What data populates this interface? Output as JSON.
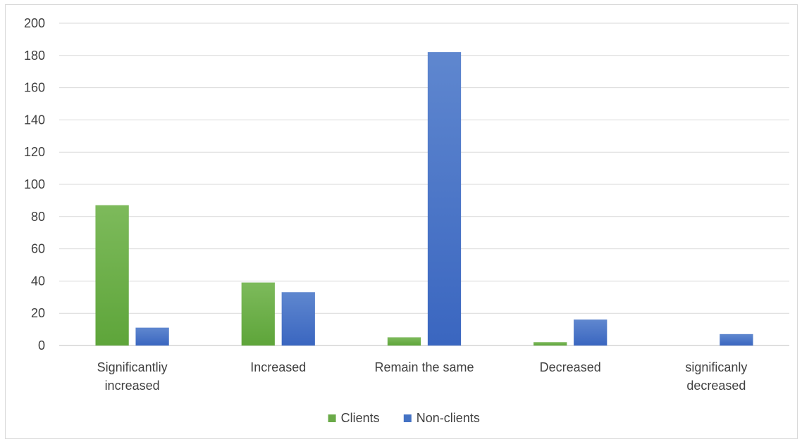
{
  "chart_data": {
    "type": "bar",
    "title": "",
    "xlabel": "",
    "ylabel": "",
    "ylim": [
      0,
      200
    ],
    "yticks": [
      0,
      20,
      40,
      60,
      80,
      100,
      120,
      140,
      160,
      180,
      200
    ],
    "grid": true,
    "legend_position": "bottom",
    "categories": [
      [
        "Significantliy",
        "increased"
      ],
      [
        "Increased"
      ],
      [
        "Remain the same"
      ],
      [
        "Decreased"
      ],
      [
        "significanly",
        "decreased"
      ]
    ],
    "series": [
      {
        "name": "Clients",
        "color": "#6aaa48",
        "values": [
          87,
          39,
          5,
          2,
          0
        ]
      },
      {
        "name": "Non-clients",
        "color": "#4472c4",
        "values": [
          11,
          33,
          182,
          16,
          7
        ]
      }
    ]
  }
}
